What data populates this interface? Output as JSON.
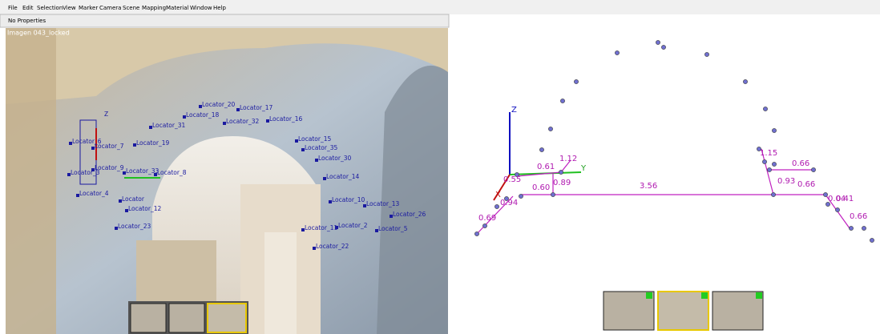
{
  "menu": {
    "items": [
      "File",
      "Edit",
      "Selection",
      "View",
      "Marker",
      "Camera",
      "Scene",
      "Mapping",
      "Material",
      "Window",
      "Help"
    ]
  },
  "toolbar": {
    "label": "No Properties"
  },
  "left_view": {
    "title": "Imagen 043_locked",
    "axis_z": "Z",
    "locators": [
      "Locator_20",
      "Locator_17",
      "Locator_18",
      "Locator_32",
      "Locator_16",
      "Locator_31",
      "Locator_6",
      "Locator_7",
      "Locator_19",
      "Locator_15",
      "Locator_35",
      "Locator_30",
      "Locator_9",
      "Locator_3",
      "Locator_33",
      "Locator_8",
      "Locator_14",
      "Locator_4",
      "Locator",
      "Locator_12",
      "Locator_10",
      "Locator_13",
      "Locator_26",
      "Locator_23",
      "Locator_11",
      "Locator_2",
      "Locator_5",
      "Locator_22"
    ]
  },
  "right_view": {
    "axis_x": "X",
    "axis_y": "Y",
    "axis_z": "Z",
    "measurements": [
      "0.61",
      "1.12",
      "0.55",
      "0.89",
      "0.60",
      "3.56",
      "1.15",
      "0.66",
      "0.93",
      "0.66",
      "0.04",
      "0.41",
      "0.94",
      "0.69",
      "0.66"
    ]
  }
}
